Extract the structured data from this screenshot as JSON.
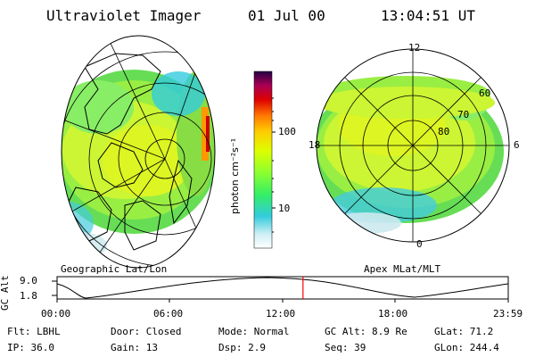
{
  "header": {
    "instrument": "Ultraviolet Imager",
    "date": "01 Jul 00",
    "time": "13:04:51 UT"
  },
  "colorbar": {
    "label": "photon cm⁻²s⁻¹",
    "ticks": [
      "100",
      "10"
    ]
  },
  "left_panel": {
    "caption": "Geographic Lat/Lon",
    "palette": {
      "green": "#33ff33",
      "yellow": "#ffff00",
      "cyan": "#33ccff",
      "lightgreen": "#aaff66",
      "orange": "#ff9900",
      "red": "#cc0000"
    }
  },
  "right_panel": {
    "caption": "Apex MLat/MLT",
    "mlt_labels": {
      "top": "12",
      "bottom": "0",
      "left": "18",
      "right": "6"
    },
    "lat_labels": [
      "60",
      "70",
      "80"
    ]
  },
  "altitude_plot": {
    "label_axis": "GC Alt",
    "y_ticks": [
      "9.0",
      "1.8"
    ],
    "x_ticks": [
      "00:00",
      "06:00",
      "12:00",
      "18:00",
      "23:59"
    ],
    "current_time_marker_fraction": 0.5451,
    "marker_color": "#ff0000"
  },
  "footer": {
    "filter": "Flt: LBHL",
    "ip": "IP: 36.0",
    "door": "Door: Closed",
    "gain": "Gain: 13",
    "mode": "Mode: Normal",
    "dsp": "Dsp:    2.9",
    "gc_alt": "GC Alt: 8.9 Re",
    "seq": "Seq: 39",
    "glat": "GLat:  71.2",
    "glon": "GLon: 244.4"
  }
}
